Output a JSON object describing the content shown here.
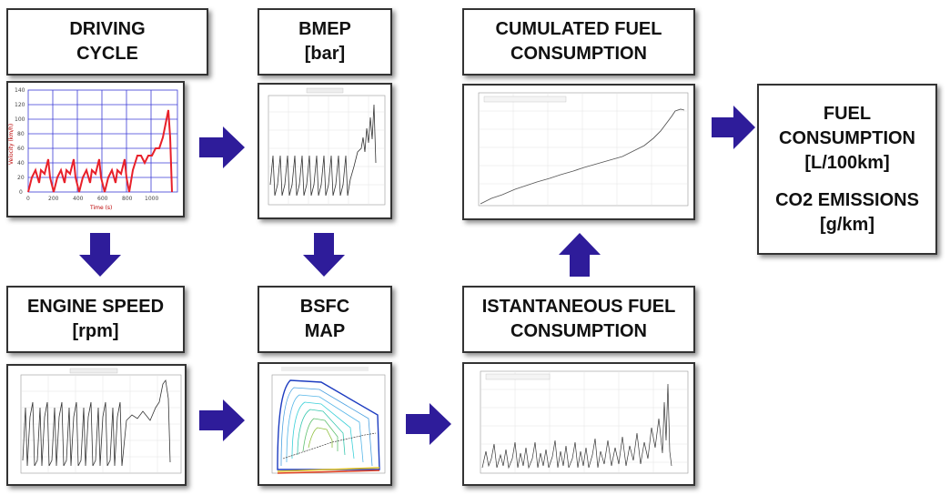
{
  "steps": {
    "driving_cycle": {
      "line1": "DRIVING",
      "line2": "CYCLE"
    },
    "bmep": {
      "line1": "BMEP",
      "line2": "[bar]"
    },
    "cumulated_fuel": {
      "line1": "CUMULATED FUEL",
      "line2": "CONSUMPTION"
    },
    "engine_speed": {
      "line1": "ENGINE SPEED",
      "line2": "[rpm]"
    },
    "bsfc_map": {
      "line1": "BSFC",
      "line2": "MAP"
    },
    "instantaneous_fuel": {
      "line1": "ISTANTANEOUS FUEL",
      "line2": "CONSUMPTION"
    },
    "result": {
      "line1": "FUEL",
      "line2": "CONSUMPTION",
      "line3": "[L/100km]",
      "line4": "CO2 EMISSIONS",
      "line5": "[g/km]"
    }
  },
  "driving_cycle_plot": {
    "ylabel": "Velocity (km/h)",
    "xlabel": "Time (s)",
    "yticks": [
      "0",
      "20",
      "40",
      "60",
      "80",
      "100",
      "120",
      "140"
    ],
    "xticks": [
      "0",
      "200",
      "400",
      "600",
      "800",
      "1000"
    ]
  },
  "colors": {
    "arrow": "#2e1c9a",
    "speed_trace": "#e8202a",
    "grid": "#3b3bd6",
    "border": "#333333"
  },
  "icons": [
    "arrow-right-icon",
    "arrow-down-icon",
    "arrow-up-icon"
  ]
}
